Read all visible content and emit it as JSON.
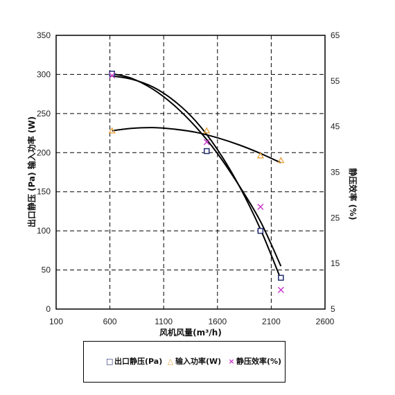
{
  "chart_data": {
    "type": "line",
    "xlabel": "风机风量(m³/h)",
    "ylabel_left": "出口静压 (Pa) 输入功率 (W)",
    "ylabel_right": "静压效率 (%)",
    "x_range": [
      100,
      2600
    ],
    "x_ticks": [
      "100",
      "600",
      "1100",
      "1600",
      "2100",
      "2600"
    ],
    "y_left_range": [
      0,
      350
    ],
    "y_left_ticks": [
      "0",
      "50",
      "100",
      "150",
      "200",
      "250",
      "300",
      "350"
    ],
    "y_right_range": [
      5,
      65
    ],
    "y_right_ticks": [
      "5",
      "15",
      "25",
      "35",
      "45",
      "55",
      "65"
    ],
    "grid": true,
    "legend_placement": "bottom",
    "series": [
      {
        "name": "出口静压(Pa)",
        "axis": "left",
        "marker": "square",
        "color": "#1f2a6e",
        "x": [
          620,
          1500,
          2000,
          2190
        ],
        "y": [
          301,
          202,
          100,
          40
        ]
      },
      {
        "name": "输入功率(W)",
        "axis": "left",
        "marker": "triangle",
        "color": "#e8a23a",
        "x": [
          620,
          1500,
          2000,
          2190
        ],
        "y": [
          228,
          228,
          196,
          190
        ]
      },
      {
        "name": "静压效率(%)",
        "axis": "right",
        "marker": "x",
        "color": "#cc33cc",
        "x": [
          620,
          1500,
          2000,
          2190
        ],
        "y": [
          56.2,
          41.6,
          27.4,
          9.2
        ]
      }
    ],
    "fit_curves": [
      {
        "of": "出口静压(Pa)",
        "axis": "left",
        "x": [
          620,
          800,
          1000,
          1200,
          1400,
          1600,
          1800,
          2000,
          2190
        ],
        "y": [
          298,
          294,
          284,
          266,
          240,
          204,
          158,
          102,
          38
        ]
      },
      {
        "of": "输入功率(W)",
        "axis": "left",
        "x": [
          620,
          800,
          1000,
          1200,
          1400,
          1600,
          1800,
          2000,
          2190
        ],
        "y": [
          228,
          231,
          232,
          230,
          226,
          219,
          210,
          199,
          187
        ]
      },
      {
        "of": "静压效率(%)",
        "axis": "right",
        "x": [
          620,
          800,
          1000,
          1200,
          1400,
          1600,
          1800,
          2000,
          2190
        ],
        "y": [
          56.6,
          55.6,
          53.2,
          49.6,
          44.9,
          39.1,
          32.1,
          24.2,
          14.4
        ]
      }
    ]
  }
}
